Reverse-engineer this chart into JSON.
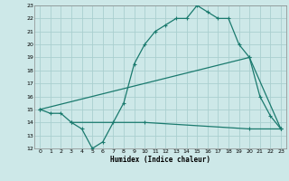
{
  "xlabel": "Humidex (Indice chaleur)",
  "xlim": [
    -0.5,
    23.5
  ],
  "ylim": [
    12,
    23
  ],
  "yticks": [
    12,
    13,
    14,
    15,
    16,
    17,
    18,
    19,
    20,
    21,
    22,
    23
  ],
  "xticks": [
    0,
    1,
    2,
    3,
    4,
    5,
    6,
    7,
    8,
    9,
    10,
    11,
    12,
    13,
    14,
    15,
    16,
    17,
    18,
    19,
    20,
    21,
    22,
    23
  ],
  "bg_color": "#cde8e8",
  "line_color": "#1a7a6e",
  "grid_color": "#aacfcf",
  "line1_x": [
    0,
    1,
    2,
    3,
    4,
    5,
    6,
    7,
    8,
    9,
    10,
    11,
    12,
    13,
    14,
    15,
    16,
    17,
    18,
    19,
    20,
    21,
    22,
    23
  ],
  "line1_y": [
    15.0,
    14.7,
    14.7,
    14.0,
    13.5,
    12.0,
    12.5,
    14.0,
    15.5,
    18.5,
    20.0,
    21.0,
    21.5,
    22.0,
    22.0,
    23.0,
    22.5,
    22.0,
    22.0,
    20.0,
    19.0,
    16.0,
    14.5,
    13.5
  ],
  "line2_x": [
    0,
    20,
    23
  ],
  "line2_y": [
    15.0,
    19.0,
    13.5
  ],
  "line3_x": [
    3,
    10,
    20,
    23
  ],
  "line3_y": [
    14.0,
    14.0,
    13.5,
    13.5
  ]
}
